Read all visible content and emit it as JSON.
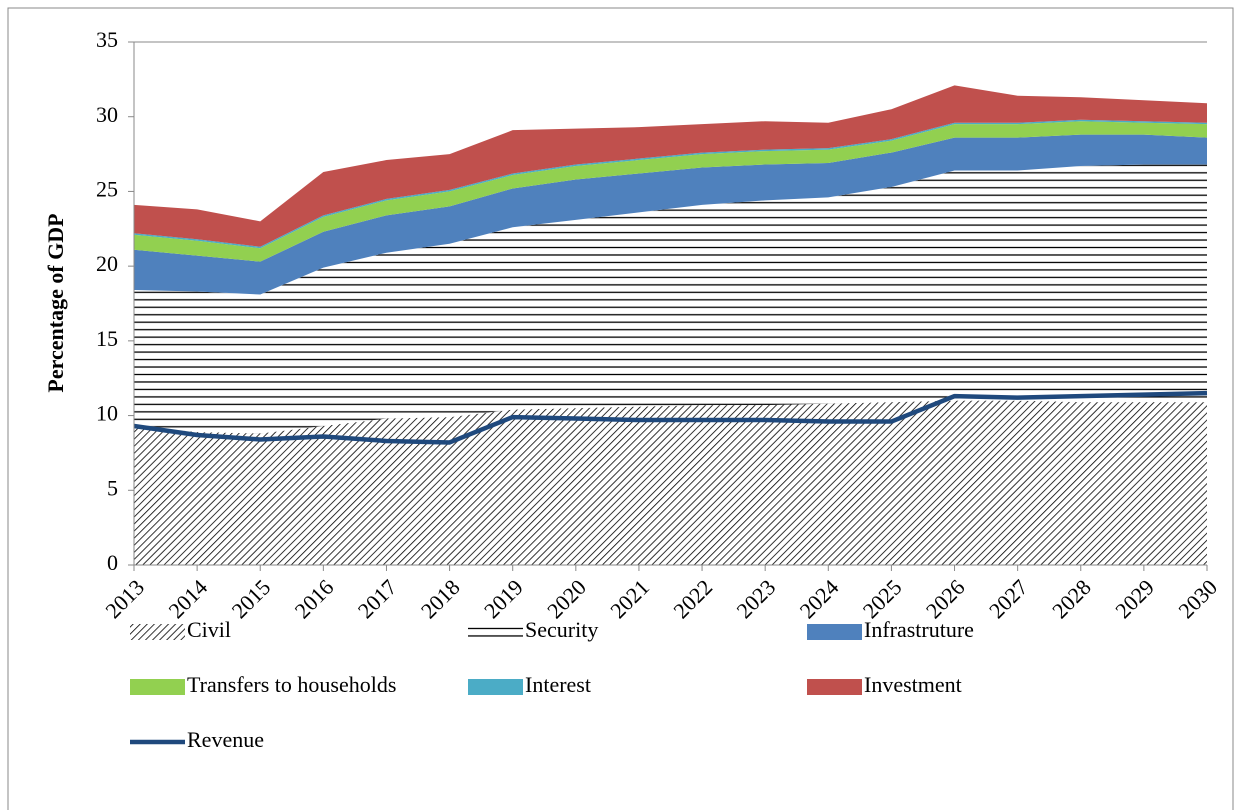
{
  "chart_data": {
    "type": "area",
    "ylabel": "Percentage of GDP",
    "x": [
      2013,
      2014,
      2015,
      2016,
      2017,
      2018,
      2019,
      2020,
      2021,
      2022,
      2023,
      2024,
      2025,
      2026,
      2027,
      2028,
      2029,
      2030
    ],
    "xlim": [
      2013,
      2030
    ],
    "xticks": [
      2013,
      2014,
      2015,
      2016,
      2017,
      2018,
      2019,
      2020,
      2021,
      2022,
      2023,
      2024,
      2025,
      2026,
      2027,
      2028,
      2029,
      2030
    ],
    "ylim": [
      0,
      35
    ],
    "yticks": [
      0,
      5,
      10,
      15,
      20,
      25,
      30,
      35
    ],
    "stacked": true,
    "series": [
      {
        "name": "Civil",
        "color": "#000000",
        "fill": "diagonal-hatch",
        "values": [
          9.3,
          8.9,
          8.8,
          9.3,
          9.8,
          9.9,
          10.4,
          10.5,
          10.6,
          10.7,
          10.7,
          10.8,
          10.9,
          11.0,
          11.0,
          10.9,
          10.9,
          10.9
        ]
      },
      {
        "name": "Security",
        "color": "#000000",
        "fill": "horizontal-lines",
        "values": [
          9.1,
          9.4,
          9.3,
          10.6,
          11.1,
          11.6,
          12.2,
          12.6,
          13.0,
          13.4,
          13.7,
          13.8,
          14.4,
          15.4,
          15.4,
          15.8,
          15.9,
          15.9
        ]
      },
      {
        "name": "Infrastruture",
        "color": "#4f81bd",
        "values": [
          2.7,
          2.4,
          2.2,
          2.4,
          2.5,
          2.5,
          2.6,
          2.7,
          2.6,
          2.5,
          2.4,
          2.3,
          2.3,
          2.2,
          2.2,
          2.1,
          2.0,
          1.8
        ]
      },
      {
        "name": "Transfers to households",
        "color": "#92d050",
        "values": [
          1.0,
          1.0,
          0.9,
          1.0,
          1.0,
          1.0,
          0.9,
          0.9,
          0.9,
          0.9,
          0.9,
          0.9,
          0.8,
          0.9,
          0.9,
          0.9,
          0.8,
          0.9
        ]
      },
      {
        "name": "Interest",
        "color": "#4bacc6",
        "values": [
          0.1,
          0.1,
          0.1,
          0.1,
          0.1,
          0.1,
          0.1,
          0.1,
          0.1,
          0.1,
          0.1,
          0.1,
          0.1,
          0.1,
          0.1,
          0.1,
          0.1,
          0.1
        ]
      },
      {
        "name": "Investment",
        "color": "#c0504d",
        "values": [
          1.9,
          2.0,
          1.7,
          2.9,
          2.6,
          2.4,
          2.9,
          2.4,
          2.1,
          1.9,
          1.9,
          1.7,
          2.0,
          2.5,
          1.8,
          1.5,
          1.4,
          1.3
        ]
      },
      {
        "name": "Revenue",
        "color": "#1f497d",
        "type": "line",
        "values": [
          9.3,
          8.7,
          8.4,
          8.6,
          8.3,
          8.2,
          9.9,
          9.8,
          9.7,
          9.7,
          9.7,
          9.6,
          9.6,
          11.3,
          11.2,
          11.3,
          11.4,
          11.5
        ]
      }
    ]
  }
}
